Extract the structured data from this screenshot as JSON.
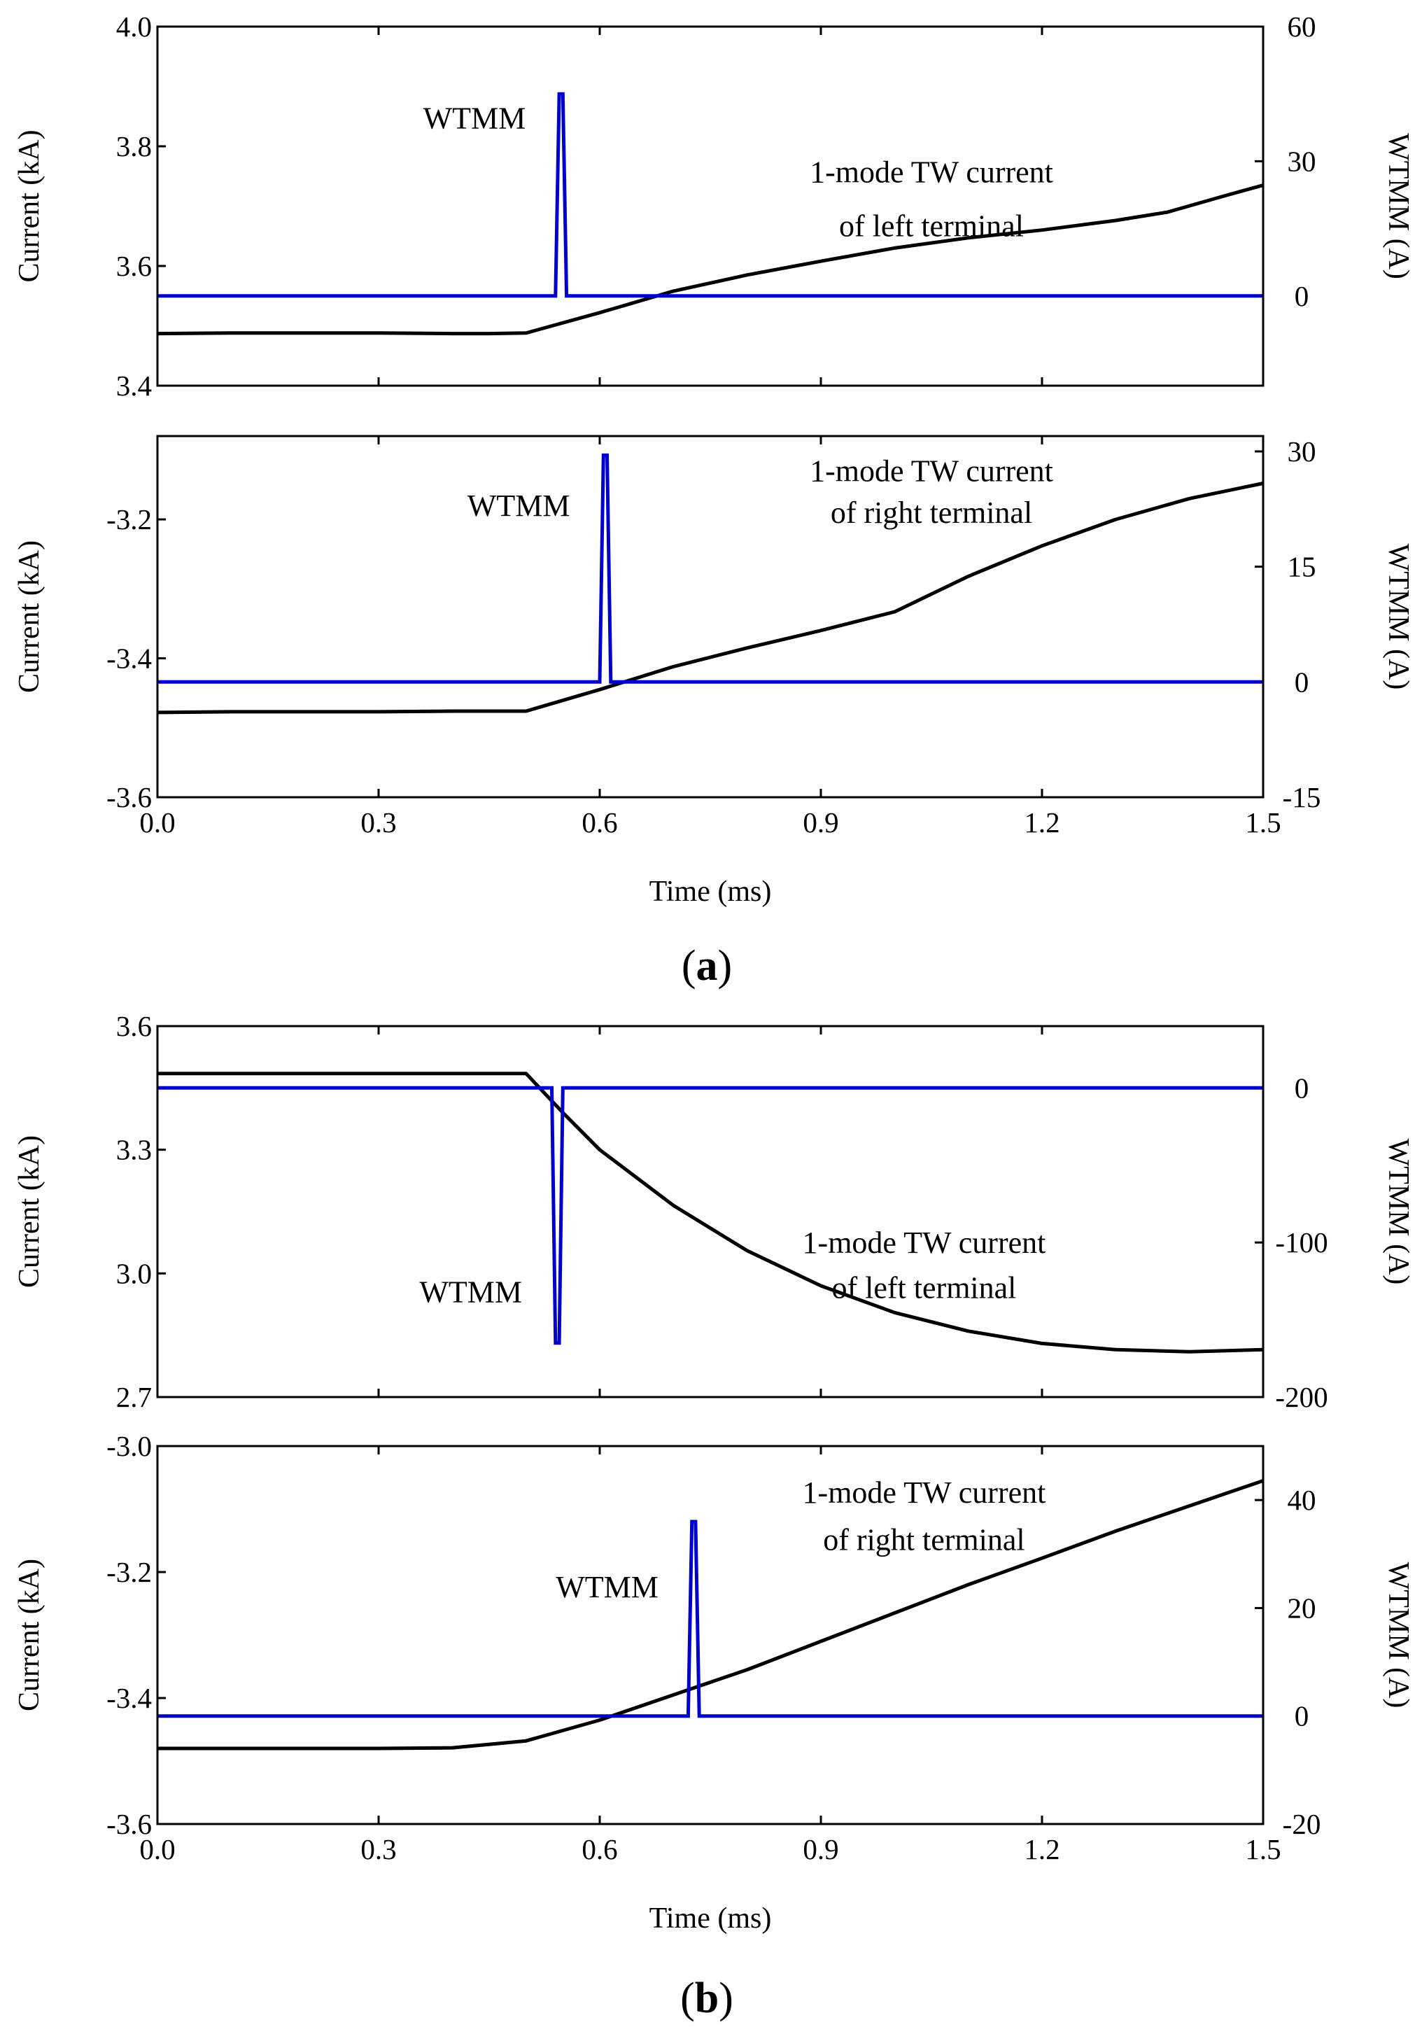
{
  "chart_data": [
    {
      "type": "line",
      "id": "a-top",
      "xlim": [
        0,
        1.5
      ],
      "x_ticks": [
        "0.0",
        "0.3",
        "0.6",
        "0.9",
        "1.2",
        "1.5"
      ],
      "show_x_tick_labels": false,
      "ylabel": "Current (kA)",
      "ylim": [
        3.4,
        4.0
      ],
      "y_ticks": [
        "3.4",
        "3.6",
        "3.8",
        "4.0"
      ],
      "y2label": "WTMM (A)",
      "y2lim": [
        -20,
        60
      ],
      "y2_ticks": [
        "0",
        "30",
        "60"
      ],
      "annotations": [
        {
          "text": "WTMM",
          "x": 0.43,
          "y": 3.83
        },
        {
          "text": "1-mode TW current",
          "x": 1.05,
          "y": 3.74
        },
        {
          "text": "of left terminal",
          "x": 1.05,
          "y": 3.65
        }
      ],
      "series": [
        {
          "name": "1-mode TW current of left terminal",
          "axis": "left",
          "color": "#000000",
          "x": [
            0,
            0.1,
            0.2,
            0.3,
            0.4,
            0.45,
            0.5,
            0.6,
            0.7,
            0.8,
            0.9,
            1.0,
            1.1,
            1.2,
            1.3,
            1.37,
            1.45,
            1.5
          ],
          "y": [
            3.487,
            3.488,
            3.488,
            3.488,
            3.487,
            3.487,
            3.488,
            3.522,
            3.558,
            3.585,
            3.608,
            3.63,
            3.647,
            3.66,
            3.676,
            3.69,
            3.718,
            3.735
          ]
        },
        {
          "name": "WTMM",
          "axis": "right",
          "color": "#0000cc",
          "x": [
            0,
            0.54,
            0.545,
            0.55,
            0.555,
            1.5
          ],
          "y": [
            0,
            0,
            45,
            45,
            0,
            0
          ]
        }
      ]
    },
    {
      "type": "line",
      "id": "a-bottom",
      "xlim": [
        0,
        1.5
      ],
      "x_ticks": [
        "0.0",
        "0.3",
        "0.6",
        "0.9",
        "1.2",
        "1.5"
      ],
      "show_x_tick_labels": true,
      "xlabel": "Time (ms)",
      "ylabel": "Current (kA)",
      "ylim": [
        -3.6,
        -3.08
      ],
      "y_ticks": [
        "-3.6",
        "-3.4",
        "-3.2"
      ],
      "y2label": "WTMM (A)",
      "y2lim": [
        -15,
        32
      ],
      "y2_ticks": [
        "-15",
        "0",
        "15",
        "30"
      ],
      "annotations": [
        {
          "text": "WTMM",
          "x": 0.49,
          "y": -3.195
        },
        {
          "text": "1-mode TW current",
          "x": 1.05,
          "y": -3.145
        },
        {
          "text": "of right terminal",
          "x": 1.05,
          "y": -3.205
        }
      ],
      "series": [
        {
          "name": "1-mode TW current of right terminal",
          "axis": "left",
          "color": "#000000",
          "x": [
            0,
            0.1,
            0.2,
            0.3,
            0.4,
            0.5,
            0.6,
            0.7,
            0.8,
            0.9,
            1.0,
            1.1,
            1.2,
            1.3,
            1.4,
            1.5
          ],
          "y": [
            -3.478,
            -3.477,
            -3.477,
            -3.477,
            -3.476,
            -3.476,
            -3.445,
            -3.412,
            -3.385,
            -3.36,
            -3.333,
            -3.282,
            -3.238,
            -3.2,
            -3.17,
            -3.148
          ]
        },
        {
          "name": "WTMM",
          "axis": "right",
          "color": "#0000cc",
          "x": [
            0,
            0.6,
            0.605,
            0.61,
            0.615,
            1.5
          ],
          "y": [
            0,
            0,
            29.5,
            29.5,
            0,
            0
          ]
        }
      ]
    },
    {
      "type": "line",
      "id": "b-top",
      "xlim": [
        0,
        1.5
      ],
      "x_ticks": [
        "0.0",
        "0.3",
        "0.6",
        "0.9",
        "1.2",
        "1.5"
      ],
      "show_x_tick_labels": false,
      "ylabel": "Current (kA)",
      "ylim": [
        2.7,
        3.6
      ],
      "y_ticks": [
        "2.7",
        "3.0",
        "3.3",
        "3.6"
      ],
      "y2label": "WTMM (A)",
      "y2lim": [
        -200,
        40
      ],
      "y2_ticks": [
        "-200",
        "-100",
        "0"
      ],
      "annotations": [
        {
          "text": "WTMM",
          "x": 0.425,
          "y": 2.93
        },
        {
          "text": "1-mode TW current",
          "x": 1.04,
          "y": 3.05
        },
        {
          "text": "of left terminal",
          "x": 1.04,
          "y": 2.94
        }
      ],
      "series": [
        {
          "name": "1-mode TW current of left terminal",
          "axis": "left",
          "color": "#000000",
          "x": [
            0,
            0.1,
            0.2,
            0.3,
            0.4,
            0.5,
            0.55,
            0.6,
            0.7,
            0.8,
            0.9,
            1.0,
            1.1,
            1.2,
            1.3,
            1.4,
            1.5
          ],
          "y": [
            3.485,
            3.485,
            3.485,
            3.485,
            3.485,
            3.485,
            3.39,
            3.3,
            3.165,
            3.055,
            2.97,
            2.905,
            2.86,
            2.83,
            2.815,
            2.81,
            2.815
          ]
        },
        {
          "name": "WTMM",
          "axis": "right",
          "color": "#0000cc",
          "x": [
            0,
            0.535,
            0.54,
            0.545,
            0.55,
            1.5
          ],
          "y": [
            0,
            0,
            -165,
            -165,
            0,
            0
          ]
        }
      ]
    },
    {
      "type": "line",
      "id": "b-bottom",
      "xlim": [
        0,
        1.5
      ],
      "x_ticks": [
        "0.0",
        "0.3",
        "0.6",
        "0.9",
        "1.2",
        "1.5"
      ],
      "show_x_tick_labels": true,
      "xlabel": "Time (ms)",
      "ylabel": "Current (kA)",
      "ylim": [
        -3.6,
        -3.0
      ],
      "y_ticks": [
        "-3.6",
        "-3.4",
        "-3.2",
        "-3.0"
      ],
      "y2label": "WTMM (A)",
      "y2lim": [
        -20,
        50
      ],
      "y2_ticks": [
        "-20",
        "0",
        "20",
        "40"
      ],
      "annotations": [
        {
          "text": "WTMM",
          "x": 0.61,
          "y": -3.24
        },
        {
          "text": "1-mode TW current",
          "x": 1.04,
          "y": -3.09
        },
        {
          "text": "of right terminal",
          "x": 1.04,
          "y": -3.165
        }
      ],
      "series": [
        {
          "name": "1-mode TW current of right terminal",
          "axis": "left",
          "color": "#000000",
          "x": [
            0,
            0.1,
            0.2,
            0.3,
            0.4,
            0.5,
            0.6,
            0.7,
            0.8,
            0.9,
            1.0,
            1.1,
            1.2,
            1.3,
            1.4,
            1.5
          ],
          "y": [
            -3.48,
            -3.48,
            -3.48,
            -3.48,
            -3.479,
            -3.468,
            -3.435,
            -3.395,
            -3.355,
            -3.31,
            -3.265,
            -3.22,
            -3.178,
            -3.135,
            -3.095,
            -3.055
          ]
        },
        {
          "name": "WTMM",
          "axis": "right",
          "color": "#0000cc",
          "x": [
            0,
            0.72,
            0.725,
            0.73,
            0.735,
            1.5
          ],
          "y": [
            0,
            0,
            36,
            36,
            0,
            0
          ]
        }
      ]
    }
  ],
  "panel_labels": [
    {
      "open": "(",
      "letter": "a",
      "close": ")"
    },
    {
      "open": "(",
      "letter": "b",
      "close": ")"
    }
  ]
}
